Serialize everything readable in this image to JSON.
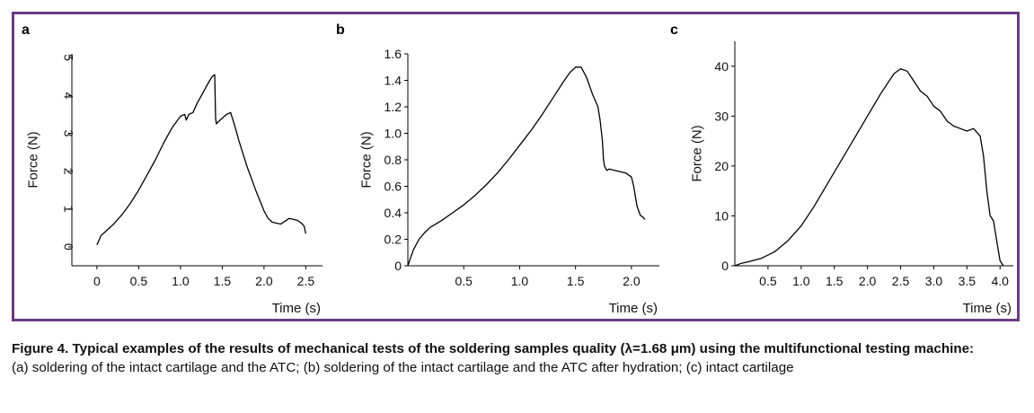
{
  "figure": {
    "caption_title": "Figure 4. Typical examples of the results of mechanical tests of the soldering samples quality (λ=1.68 μm) using the multifunctional testing machine:",
    "caption_text": "(a) soldering of the intact cartilage and the ATC; (b) soldering of the intact cartilage and the ATC after hydration; (c) intact cartilage"
  },
  "colors": {
    "frame": "#6a3b83",
    "line": "#000000",
    "text": "#111111"
  },
  "chart_data": [
    {
      "panel": "a",
      "type": "line",
      "xlabel": "Time (s)",
      "ylabel": "Force (N)",
      "xlim": [
        -0.3,
        2.7
      ],
      "ylim": [
        -0.5,
        5.1
      ],
      "xticks": [
        0,
        0.5,
        1.0,
        1.5,
        2.0,
        2.5
      ],
      "xtick_labels": [
        "0",
        "0.5",
        "1.0",
        "1.5",
        "2.0",
        "2.5"
      ],
      "yticks": [
        0,
        1,
        2,
        3,
        4,
        5
      ],
      "ytick_labels": [
        "0",
        "1",
        "2",
        "3",
        "4",
        "5"
      ],
      "ytick_rotated": true,
      "x_label_edge": "right",
      "series": [
        {
          "x": [
            0,
            0.05,
            0.1,
            0.2,
            0.3,
            0.4,
            0.5,
            0.6,
            0.7,
            0.8,
            0.9,
            1.0,
            1.05,
            1.07,
            1.1,
            1.15,
            1.2,
            1.25,
            1.3,
            1.35,
            1.38,
            1.41,
            1.42,
            1.43,
            1.45,
            1.5,
            1.55,
            1.6,
            1.65,
            1.7,
            1.8,
            1.9,
            2.0,
            2.05,
            2.1,
            2.2,
            2.3,
            2.4,
            2.45,
            2.48,
            2.5
          ],
          "y": [
            0.05,
            0.3,
            0.4,
            0.6,
            0.85,
            1.15,
            1.5,
            1.9,
            2.3,
            2.75,
            3.15,
            3.45,
            3.5,
            3.35,
            3.5,
            3.55,
            3.8,
            4.0,
            4.2,
            4.4,
            4.5,
            4.55,
            3.4,
            3.25,
            3.3,
            3.4,
            3.5,
            3.55,
            3.2,
            2.8,
            2.1,
            1.5,
            0.95,
            0.75,
            0.65,
            0.6,
            0.75,
            0.7,
            0.62,
            0.55,
            0.35
          ]
        }
      ]
    },
    {
      "panel": "b",
      "type": "line",
      "xlabel": "Time (s)",
      "ylabel": "Force (N)",
      "xlim": [
        0,
        2.25
      ],
      "ylim": [
        0,
        1.6
      ],
      "xticks": [
        0.5,
        1.0,
        1.5,
        2.0
      ],
      "xtick_labels": [
        "0.5",
        "1.0",
        "1.5",
        "2.0"
      ],
      "yticks": [
        0,
        0.2,
        0.4,
        0.6,
        0.8,
        1.0,
        1.2,
        1.4,
        1.6
      ],
      "ytick_labels": [
        "0",
        "0.2",
        "0.4",
        "0.6",
        "0.8",
        "1.0",
        "1.2",
        "1.4",
        "1.6"
      ],
      "ytick_rotated": false,
      "x_label_edge": "right",
      "series": [
        {
          "x": [
            0,
            0.02,
            0.05,
            0.1,
            0.15,
            0.2,
            0.3,
            0.4,
            0.5,
            0.6,
            0.7,
            0.8,
            0.9,
            1.0,
            1.1,
            1.2,
            1.3,
            1.4,
            1.45,
            1.5,
            1.55,
            1.6,
            1.65,
            1.7,
            1.72,
            1.74,
            1.75,
            1.76,
            1.78,
            1.8,
            1.85,
            1.9,
            1.95,
            2.0,
            2.02,
            2.05,
            2.08,
            2.1,
            2.12
          ],
          "y": [
            0,
            0.05,
            0.12,
            0.2,
            0.25,
            0.29,
            0.34,
            0.4,
            0.46,
            0.53,
            0.61,
            0.7,
            0.8,
            0.91,
            1.02,
            1.14,
            1.27,
            1.4,
            1.46,
            1.5,
            1.5,
            1.42,
            1.3,
            1.2,
            1.1,
            0.95,
            0.8,
            0.75,
            0.72,
            0.73,
            0.72,
            0.71,
            0.7,
            0.67,
            0.6,
            0.45,
            0.38,
            0.37,
            0.35
          ]
        }
      ]
    },
    {
      "panel": "c",
      "type": "line",
      "xlabel": "Time (s)",
      "ylabel": "Force (N)",
      "xlim": [
        0,
        4.2
      ],
      "ylim": [
        0,
        45
      ],
      "xticks": [
        0.5,
        1.0,
        1.5,
        2.0,
        2.5,
        3.0,
        3.5,
        4.0
      ],
      "xtick_labels": [
        "0.5",
        "1.0",
        "1.5",
        "2.0",
        "2.5",
        "3.0",
        "3.5",
        "4.0"
      ],
      "yticks": [
        0,
        10,
        20,
        30,
        40
      ],
      "ytick_labels": [
        "0",
        "10",
        "20",
        "30",
        "40"
      ],
      "ytick_rotated": false,
      "x_label_edge": "right",
      "series": [
        {
          "x": [
            0,
            0.1,
            0.2,
            0.4,
            0.6,
            0.8,
            1.0,
            1.2,
            1.4,
            1.6,
            1.8,
            2.0,
            2.2,
            2.4,
            2.5,
            2.6,
            2.7,
            2.8,
            2.9,
            3.0,
            3.1,
            3.2,
            3.3,
            3.4,
            3.5,
            3.6,
            3.7,
            3.75,
            3.8,
            3.85,
            3.9,
            3.95,
            4.0,
            4.05
          ],
          "y": [
            0,
            0.5,
            0.8,
            1.5,
            2.8,
            5,
            8,
            12,
            16.5,
            21,
            25.5,
            30,
            34.5,
            38.5,
            39.5,
            39,
            37,
            35,
            34,
            32,
            31,
            29,
            28,
            27.5,
            27,
            27.5,
            26,
            22,
            15,
            10,
            9,
            5,
            1,
            0
          ]
        }
      ]
    }
  ]
}
